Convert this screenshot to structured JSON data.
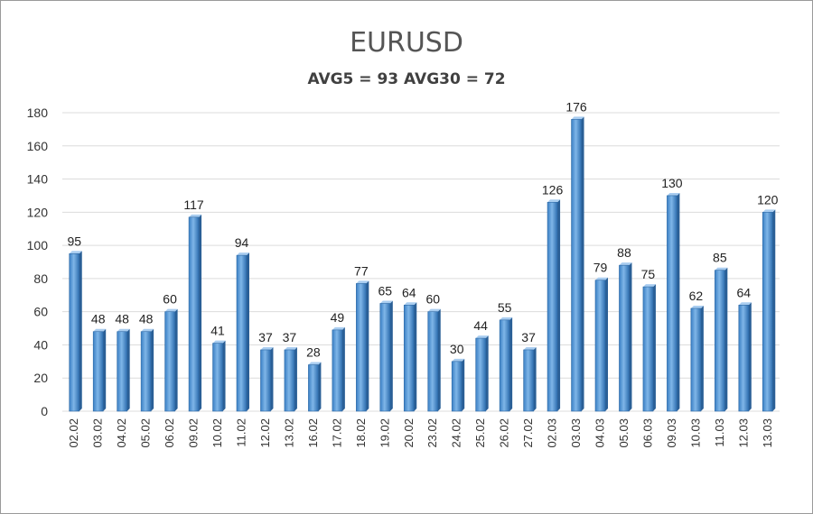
{
  "chart_data": {
    "type": "bar",
    "title": "EURUSD",
    "subtitle": "AVG5 = 93 AVG30 = 72",
    "xlabel": "",
    "ylabel": "",
    "ylim": [
      0,
      180
    ],
    "yticks": [
      0,
      20,
      40,
      60,
      80,
      100,
      120,
      140,
      160,
      180
    ],
    "grid": true,
    "legend": "none",
    "bar_color": "#5b9bd5",
    "categories": [
      "02.02",
      "03.02",
      "04.02",
      "05.02",
      "06.02",
      "09.02",
      "10.02",
      "11.02",
      "12.02",
      "13.02",
      "16.02",
      "17.02",
      "18.02",
      "19.02",
      "20.02",
      "23.02",
      "24.02",
      "25.02",
      "26.02",
      "27.02",
      "02.03",
      "03.03",
      "04.03",
      "05.03",
      "06.03",
      "09.03",
      "10.03",
      "11.03",
      "12.03",
      "13.03"
    ],
    "values": [
      95,
      48,
      48,
      48,
      60,
      117,
      41,
      94,
      37,
      37,
      28,
      49,
      77,
      65,
      64,
      60,
      30,
      44,
      55,
      37,
      126,
      176,
      79,
      88,
      75,
      130,
      62,
      85,
      64,
      120
    ]
  }
}
